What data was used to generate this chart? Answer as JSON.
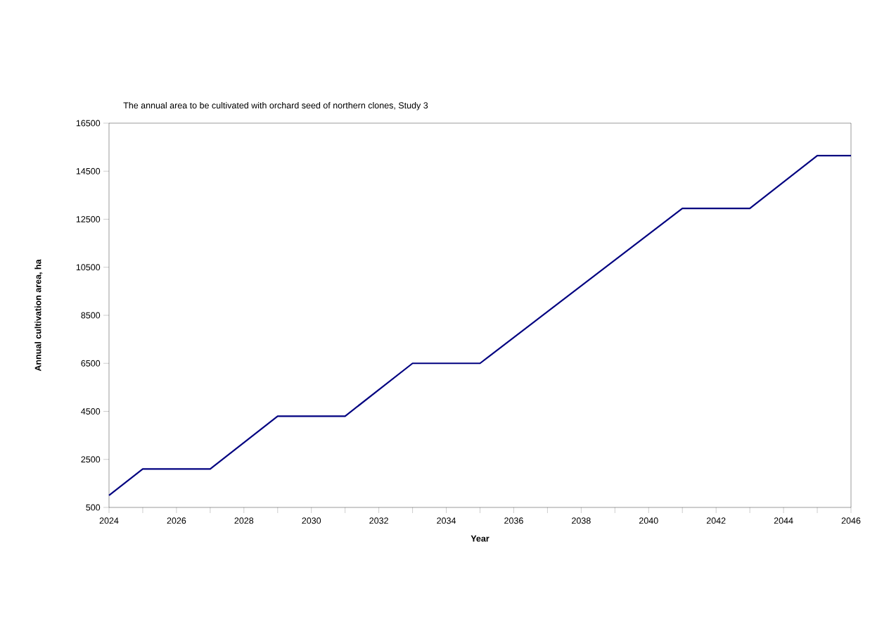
{
  "chart_data": {
    "type": "line",
    "title": "The annual area to be cultivated with orchard seed of northern clones, Study 3",
    "xlabel": "Year",
    "ylabel": "Annual cultivation area, ha",
    "x": [
      2024,
      2025,
      2027,
      2029,
      2031,
      2033,
      2035,
      2041,
      2043,
      2045,
      2046
    ],
    "values": [
      1000,
      2100,
      2100,
      4300,
      4300,
      6500,
      6500,
      12950,
      12950,
      15150,
      15150
    ],
    "color": "#000080",
    "xlim": [
      2024,
      2046
    ],
    "xticks": [
      2024,
      {
        "value": 2025,
        "label": null
      },
      2026,
      {
        "value": 2027,
        "label": null
      },
      2028,
      {
        "value": 2029,
        "label": null
      },
      2030,
      {
        "value": 2031,
        "label": null
      },
      2032,
      {
        "value": 2033,
        "label": null
      },
      2034,
      {
        "value": 2035,
        "label": null
      },
      2036,
      {
        "value": 2037,
        "label": null
      },
      2038,
      {
        "value": 2039,
        "label": null
      },
      2040,
      {
        "value": 2041,
        "label": null
      },
      2042,
      {
        "value": 2043,
        "label": null
      },
      2044,
      {
        "value": 2045,
        "label": null
      },
      2046
    ],
    "ylim": [
      500,
      16500
    ],
    "yticks": [
      500,
      2500,
      4500,
      6500,
      8500,
      10500,
      12500,
      14500,
      16500
    ],
    "grid": false,
    "marker": "none",
    "line_style": "solid"
  }
}
